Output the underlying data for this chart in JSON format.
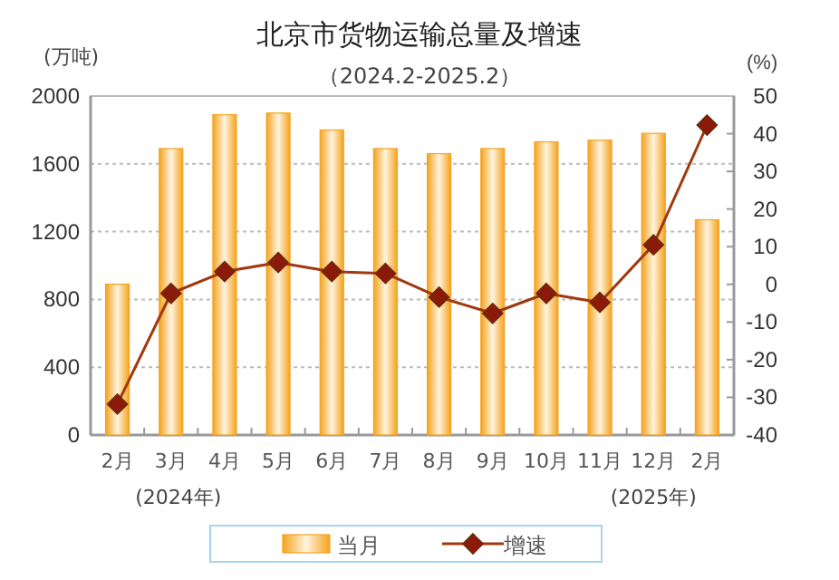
{
  "chart_data": {
    "type": "bar",
    "title": "北京市货物运输总量及增速",
    "subtitle": "（2024.2-2025.2）",
    "ylabel": "(万吨)",
    "y2label": "(%)",
    "annotations": [
      "(2024年)",
      "(2025年)"
    ],
    "categories": [
      "2月",
      "3月",
      "4月",
      "5月",
      "6月",
      "7月",
      "8月",
      "9月",
      "10月",
      "11月",
      "12月",
      "2月"
    ],
    "series": [
      {
        "name": "当月",
        "color": "#f5a31e",
        "values": [
          890,
          1690,
          1890,
          1900,
          1800,
          1690,
          1660,
          1690,
          1730,
          1740,
          1780,
          1270
        ]
      },
      {
        "name": "增速",
        "type": "line",
        "axis": "y2",
        "color": "#a2380f",
        "marker": "diamond",
        "values": [
          -31.8,
          -2.4,
          3.4,
          5.8,
          3.4,
          2.9,
          -3.4,
          -7.7,
          -2.4,
          -4.8,
          10.5,
          42.3
        ]
      }
    ],
    "ylim": [
      0,
      2000
    ],
    "yticks": [
      0,
      400,
      800,
      1200,
      1600,
      2000
    ],
    "y2lim": [
      -40,
      50
    ],
    "y2ticks": [
      -40,
      -30,
      -20,
      -10,
      0,
      10,
      20,
      30,
      40,
      50
    ],
    "grid": "y",
    "legend": "bottom"
  }
}
